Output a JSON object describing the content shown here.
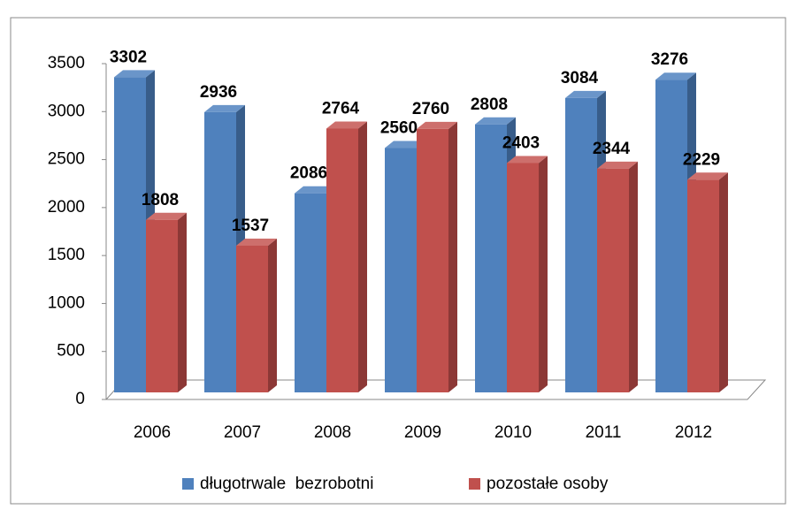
{
  "chart_data": {
    "type": "bar3d",
    "categories": [
      "2006",
      "2007",
      "2008",
      "2009",
      "2010",
      "2011",
      "2012"
    ],
    "series": [
      {
        "name": "długotrwale  bezrobotni",
        "color": "#4f81bd",
        "side": "#385d8a",
        "top": "#6a95c9",
        "values": [
          3302,
          2936,
          2086,
          2560,
          2808,
          3084,
          3276
        ]
      },
      {
        "name": "pozostałe osoby",
        "color": "#c0504d",
        "side": "#8c3836",
        "top": "#cd6f6c",
        "values": [
          1808,
          1537,
          2764,
          2760,
          2403,
          2344,
          2229
        ]
      }
    ],
    "ylim": [
      0,
      3500
    ],
    "yticks": [
      0,
      500,
      1000,
      1500,
      2000,
      2500,
      3000,
      3500
    ],
    "legend": "bottom"
  }
}
